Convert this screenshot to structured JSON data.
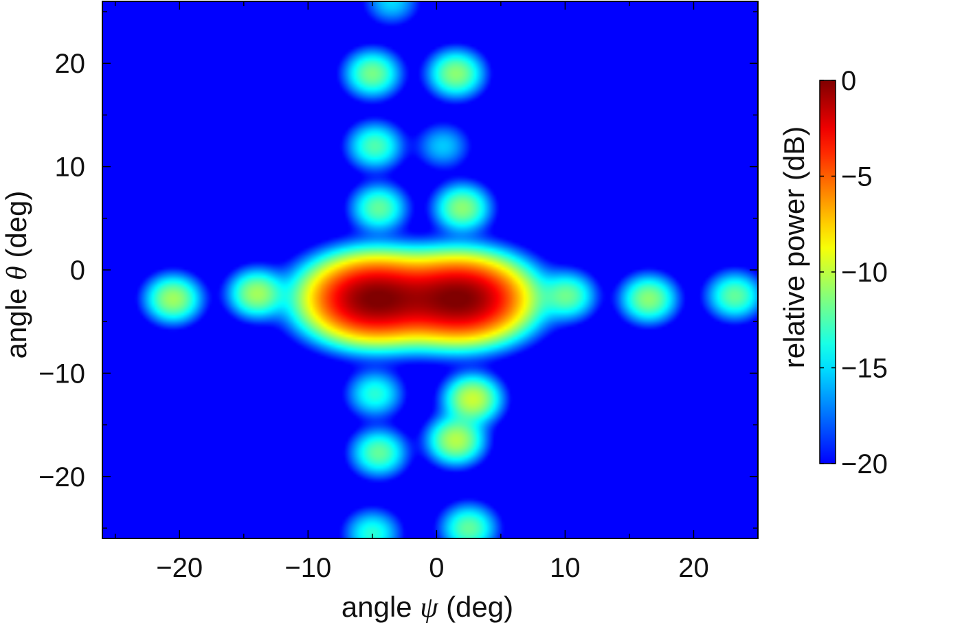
{
  "chart_data": {
    "type": "heatmap",
    "title": "",
    "xlabel": {
      "prefix": "angle ",
      "symbol": "ψ",
      "suffix": " (deg)"
    },
    "ylabel": {
      "prefix": "angle ",
      "symbol": "θ",
      "suffix": " (deg)"
    },
    "xlim": [
      -26,
      25
    ],
    "ylim": [
      -26,
      26
    ],
    "xticks": [
      -20,
      -10,
      0,
      10,
      20
    ],
    "xtick_labels": [
      "−20",
      "−10",
      "0",
      "10",
      "20"
    ],
    "yticks": [
      -20,
      -10,
      0,
      10,
      20
    ],
    "ytick_labels": [
      "−20",
      "−10",
      "0",
      "10",
      "20"
    ],
    "minor_ticks_x": [
      -25,
      -15,
      -5,
      5,
      15,
      25
    ],
    "minor_ticks_y": [
      -25,
      -15,
      -5,
      5,
      15,
      25
    ],
    "grid": false,
    "colorbar": {
      "label": "relative power (dB)",
      "range": [
        -20,
        0
      ],
      "ticks": [
        0,
        -5,
        -10,
        -15,
        -20
      ],
      "tick_labels": [
        "0",
        "−5",
        "−10",
        "−15",
        "−20"
      ],
      "colormap": "jet",
      "placement": "right"
    },
    "background_db": -20,
    "lobes": [
      {
        "psi": -4.8,
        "theta": -2.8,
        "peak_db": 0,
        "shape": "main",
        "note": "main lobe left peak"
      },
      {
        "psi": 1.8,
        "theta": -2.8,
        "peak_db": 0,
        "shape": "main",
        "note": "main lobe right peak"
      },
      {
        "psi": -20.5,
        "theta": -2.8,
        "peak_db": -11
      },
      {
        "psi": -14.0,
        "theta": -2.3,
        "peak_db": -11
      },
      {
        "psi": 10.2,
        "theta": -2.5,
        "peak_db": -12.5
      },
      {
        "psi": 16.5,
        "theta": -2.8,
        "peak_db": -11.5
      },
      {
        "psi": 23.2,
        "theta": -2.5,
        "peak_db": -12.5
      },
      {
        "psi": -5.0,
        "theta": 19.0,
        "peak_db": -12
      },
      {
        "psi": 1.5,
        "theta": 19.0,
        "peak_db": -11.5
      },
      {
        "psi": -4.8,
        "theta": 12.0,
        "peak_db": -13
      },
      {
        "psi": 0.5,
        "theta": 12.0,
        "peak_db": -16.5
      },
      {
        "psi": -4.5,
        "theta": 6.0,
        "peak_db": -12.5
      },
      {
        "psi": 2.0,
        "theta": 6.0,
        "peak_db": -11.5
      },
      {
        "psi": 2.8,
        "theta": -12.5,
        "peak_db": -10
      },
      {
        "psi": 1.5,
        "theta": -16.5,
        "peak_db": -10.5
      },
      {
        "psi": -4.8,
        "theta": -12.0,
        "peak_db": -14
      },
      {
        "psi": -4.5,
        "theta": -17.7,
        "peak_db": -12.5
      },
      {
        "psi": -5.0,
        "theta": -25.5,
        "peak_db": -14
      },
      {
        "psi": 2.5,
        "theta": -25.0,
        "peak_db": -12.5
      },
      {
        "psi": -3.5,
        "theta": 26.0,
        "peak_db": -16
      }
    ]
  }
}
